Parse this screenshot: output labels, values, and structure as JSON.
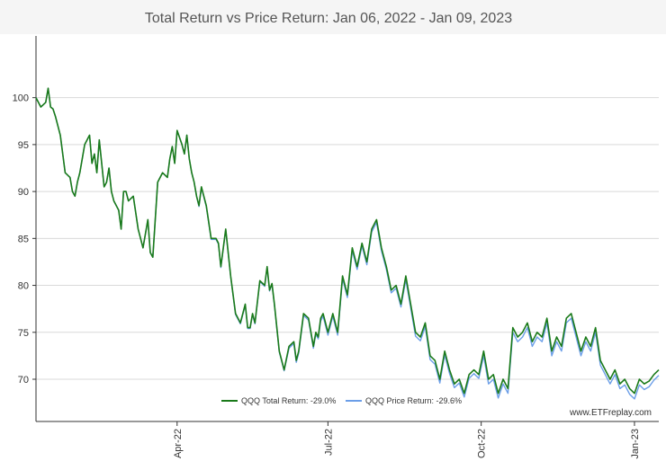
{
  "watermark": "www.ETFreplay.com",
  "colors": {
    "total": "#1a7a1a",
    "price": "#6b9ee8",
    "grid": "#d9d9d9",
    "axis": "#333333",
    "title": "#555555"
  },
  "chart_data": {
    "type": "line",
    "title": "Total Return vs Price Return: Jan 06, 2022 - Jan 09, 2023",
    "xlabel": "",
    "ylabel": "",
    "xlim": [
      0,
      256
    ],
    "ylim": [
      65.5,
      106
    ],
    "yticks": [
      70,
      75,
      80,
      85,
      90,
      95,
      100
    ],
    "xticks": [
      {
        "label": "Apr-22",
        "x": 58
      },
      {
        "label": "Jul-22",
        "x": 120
      },
      {
        "label": "Oct-22",
        "x": 183
      },
      {
        "label": "Jan-23",
        "x": 246
      }
    ],
    "legend_position": "bottom-center",
    "series": [
      {
        "name": "QQQ Total Return: -29.0%",
        "color": "#1a7a1a",
        "x": [
          0,
          2,
          4,
          5,
          6,
          7,
          8,
          10,
          12,
          14,
          15,
          16,
          17,
          18,
          20,
          22,
          23,
          24,
          25,
          26,
          27,
          28,
          29,
          30,
          31,
          32,
          34,
          35,
          36,
          37,
          38,
          40,
          42,
          44,
          45,
          46,
          47,
          48,
          50,
          52,
          54,
          55,
          56,
          57,
          58,
          60,
          61,
          62,
          63,
          64,
          65,
          66,
          67,
          68,
          70,
          72,
          74,
          75,
          76,
          78,
          80,
          82,
          84,
          86,
          87,
          88,
          89,
          90,
          92,
          94,
          95,
          96,
          97,
          98,
          100,
          102,
          104,
          106,
          107,
          108,
          110,
          112,
          114,
          115,
          116,
          117,
          118,
          120,
          122,
          124,
          126,
          128,
          130,
          132,
          134,
          136,
          138,
          140,
          142,
          144,
          146,
          148,
          150,
          152,
          154,
          156,
          158,
          160,
          162,
          164,
          166,
          168,
          170,
          172,
          174,
          176,
          178,
          180,
          182,
          184,
          186,
          188,
          190,
          192,
          194,
          196,
          198,
          200,
          202,
          204,
          206,
          208,
          210,
          212,
          214,
          216,
          218,
          220,
          222,
          224,
          226,
          228,
          230,
          232,
          234,
          236,
          238,
          240,
          242,
          244,
          246,
          248,
          250,
          252,
          254,
          256
        ],
        "y": [
          100,
          99,
          99.5,
          101,
          99,
          98.8,
          98,
          96,
          92,
          91.5,
          90,
          89.5,
          91,
          92,
          95,
          96,
          93,
          94,
          92,
          95.5,
          93,
          90.5,
          91,
          92.5,
          90,
          89,
          88,
          86,
          90,
          90,
          89,
          89.5,
          86,
          84,
          85.5,
          87,
          83.5,
          83,
          91,
          92,
          91.5,
          93.5,
          94.8,
          93,
          96.5,
          95,
          94,
          96,
          93.5,
          92,
          91,
          89.5,
          88.5,
          90.5,
          88.5,
          85,
          85,
          84.5,
          82,
          86,
          81,
          77,
          76,
          78,
          75.5,
          75.5,
          77,
          76,
          80.5,
          80,
          82,
          79.5,
          80.2,
          78,
          73,
          71,
          73.5,
          74,
          72,
          73,
          77,
          76.5,
          73.5,
          75,
          74.5,
          76.5,
          77,
          75,
          77,
          75,
          81,
          79,
          84,
          82,
          84.5,
          82.5,
          86,
          87,
          84,
          82,
          79.5,
          80,
          78,
          81,
          78,
          75,
          74.5,
          76,
          72.5,
          72,
          70,
          73,
          71,
          69.5,
          70,
          68.5,
          70.5,
          71,
          70.5,
          73,
          70,
          70.5,
          68.5,
          70,
          69,
          75.5,
          74.5,
          75,
          76,
          74,
          75,
          74.5,
          76.5,
          73,
          74.5,
          73.5,
          76.5,
          77,
          75,
          73,
          74.5,
          73.5,
          75.5,
          72,
          71,
          70,
          71,
          69.5,
          70,
          69,
          68.5,
          70,
          69.5,
          69.8,
          70.5,
          71
        ]
      },
      {
        "name": "QQQ Price Return: -29.6%",
        "color": "#6b9ee8",
        "x": [
          0,
          2,
          4,
          5,
          6,
          7,
          8,
          10,
          12,
          14,
          15,
          16,
          17,
          18,
          20,
          22,
          23,
          24,
          25,
          26,
          27,
          28,
          29,
          30,
          31,
          32,
          34,
          35,
          36,
          37,
          38,
          40,
          42,
          44,
          45,
          46,
          47,
          48,
          50,
          52,
          54,
          55,
          56,
          57,
          58,
          60,
          61,
          62,
          63,
          64,
          65,
          66,
          67,
          68,
          70,
          72,
          74,
          75,
          76,
          78,
          80,
          82,
          84,
          86,
          87,
          88,
          89,
          90,
          92,
          94,
          95,
          96,
          97,
          98,
          100,
          102,
          104,
          106,
          107,
          108,
          110,
          112,
          114,
          115,
          116,
          117,
          118,
          120,
          122,
          124,
          126,
          128,
          130,
          132,
          134,
          136,
          138,
          140,
          142,
          144,
          146,
          148,
          150,
          152,
          154,
          156,
          158,
          160,
          162,
          164,
          166,
          168,
          170,
          172,
          174,
          176,
          178,
          180,
          182,
          184,
          186,
          188,
          190,
          192,
          194,
          196,
          198,
          200,
          202,
          204,
          206,
          208,
          210,
          212,
          214,
          216,
          218,
          220,
          222,
          224,
          226,
          228,
          230,
          232,
          234,
          236,
          238,
          240,
          242,
          244,
          246,
          248,
          250,
          252,
          254,
          256
        ],
        "y": [
          100,
          99,
          99.5,
          101,
          99,
          98.8,
          98,
          96,
          92,
          91.5,
          90,
          89.5,
          91,
          92,
          95,
          96,
          93,
          94,
          92,
          95.5,
          93,
          90.5,
          91,
          92.5,
          90,
          89,
          88,
          86,
          90,
          90,
          89,
          89.5,
          86,
          84,
          85.5,
          87,
          83.5,
          83,
          91,
          92,
          91.5,
          93.5,
          94.8,
          93,
          96.5,
          95,
          94,
          96,
          93.5,
          92,
          91,
          89.5,
          88.4,
          90.4,
          88.4,
          84.9,
          84.9,
          84.4,
          81.9,
          85.9,
          80.9,
          76.9,
          75.9,
          77.9,
          75.4,
          75.4,
          76.9,
          75.9,
          80.4,
          79.9,
          81.9,
          79.4,
          80.1,
          77.9,
          72.9,
          70.9,
          73.3,
          73.8,
          71.8,
          72.8,
          76.8,
          76.3,
          73.3,
          74.8,
          74.3,
          76.2,
          76.7,
          74.7,
          76.7,
          74.7,
          80.7,
          78.7,
          83.7,
          81.7,
          84.2,
          82.2,
          85.7,
          86.7,
          83.7,
          81.7,
          79.2,
          79.7,
          77.7,
          80.6,
          77.6,
          74.6,
          74.1,
          75.6,
          72.1,
          71.6,
          69.6,
          72.6,
          70.6,
          69.1,
          69.6,
          68.1,
          70.1,
          70.6,
          70.1,
          72.5,
          69.5,
          70,
          68,
          69.5,
          68.5,
          75,
          74,
          74.5,
          75.5,
          73.5,
          74.5,
          74,
          76,
          72.5,
          74,
          73,
          76,
          76.5,
          74.5,
          72.5,
          74,
          73,
          75,
          71.5,
          70.5,
          69.5,
          70.5,
          69,
          69.4,
          68.4,
          67.9,
          69.4,
          68.9,
          69.2,
          69.9,
          70.4
        ]
      }
    ]
  }
}
